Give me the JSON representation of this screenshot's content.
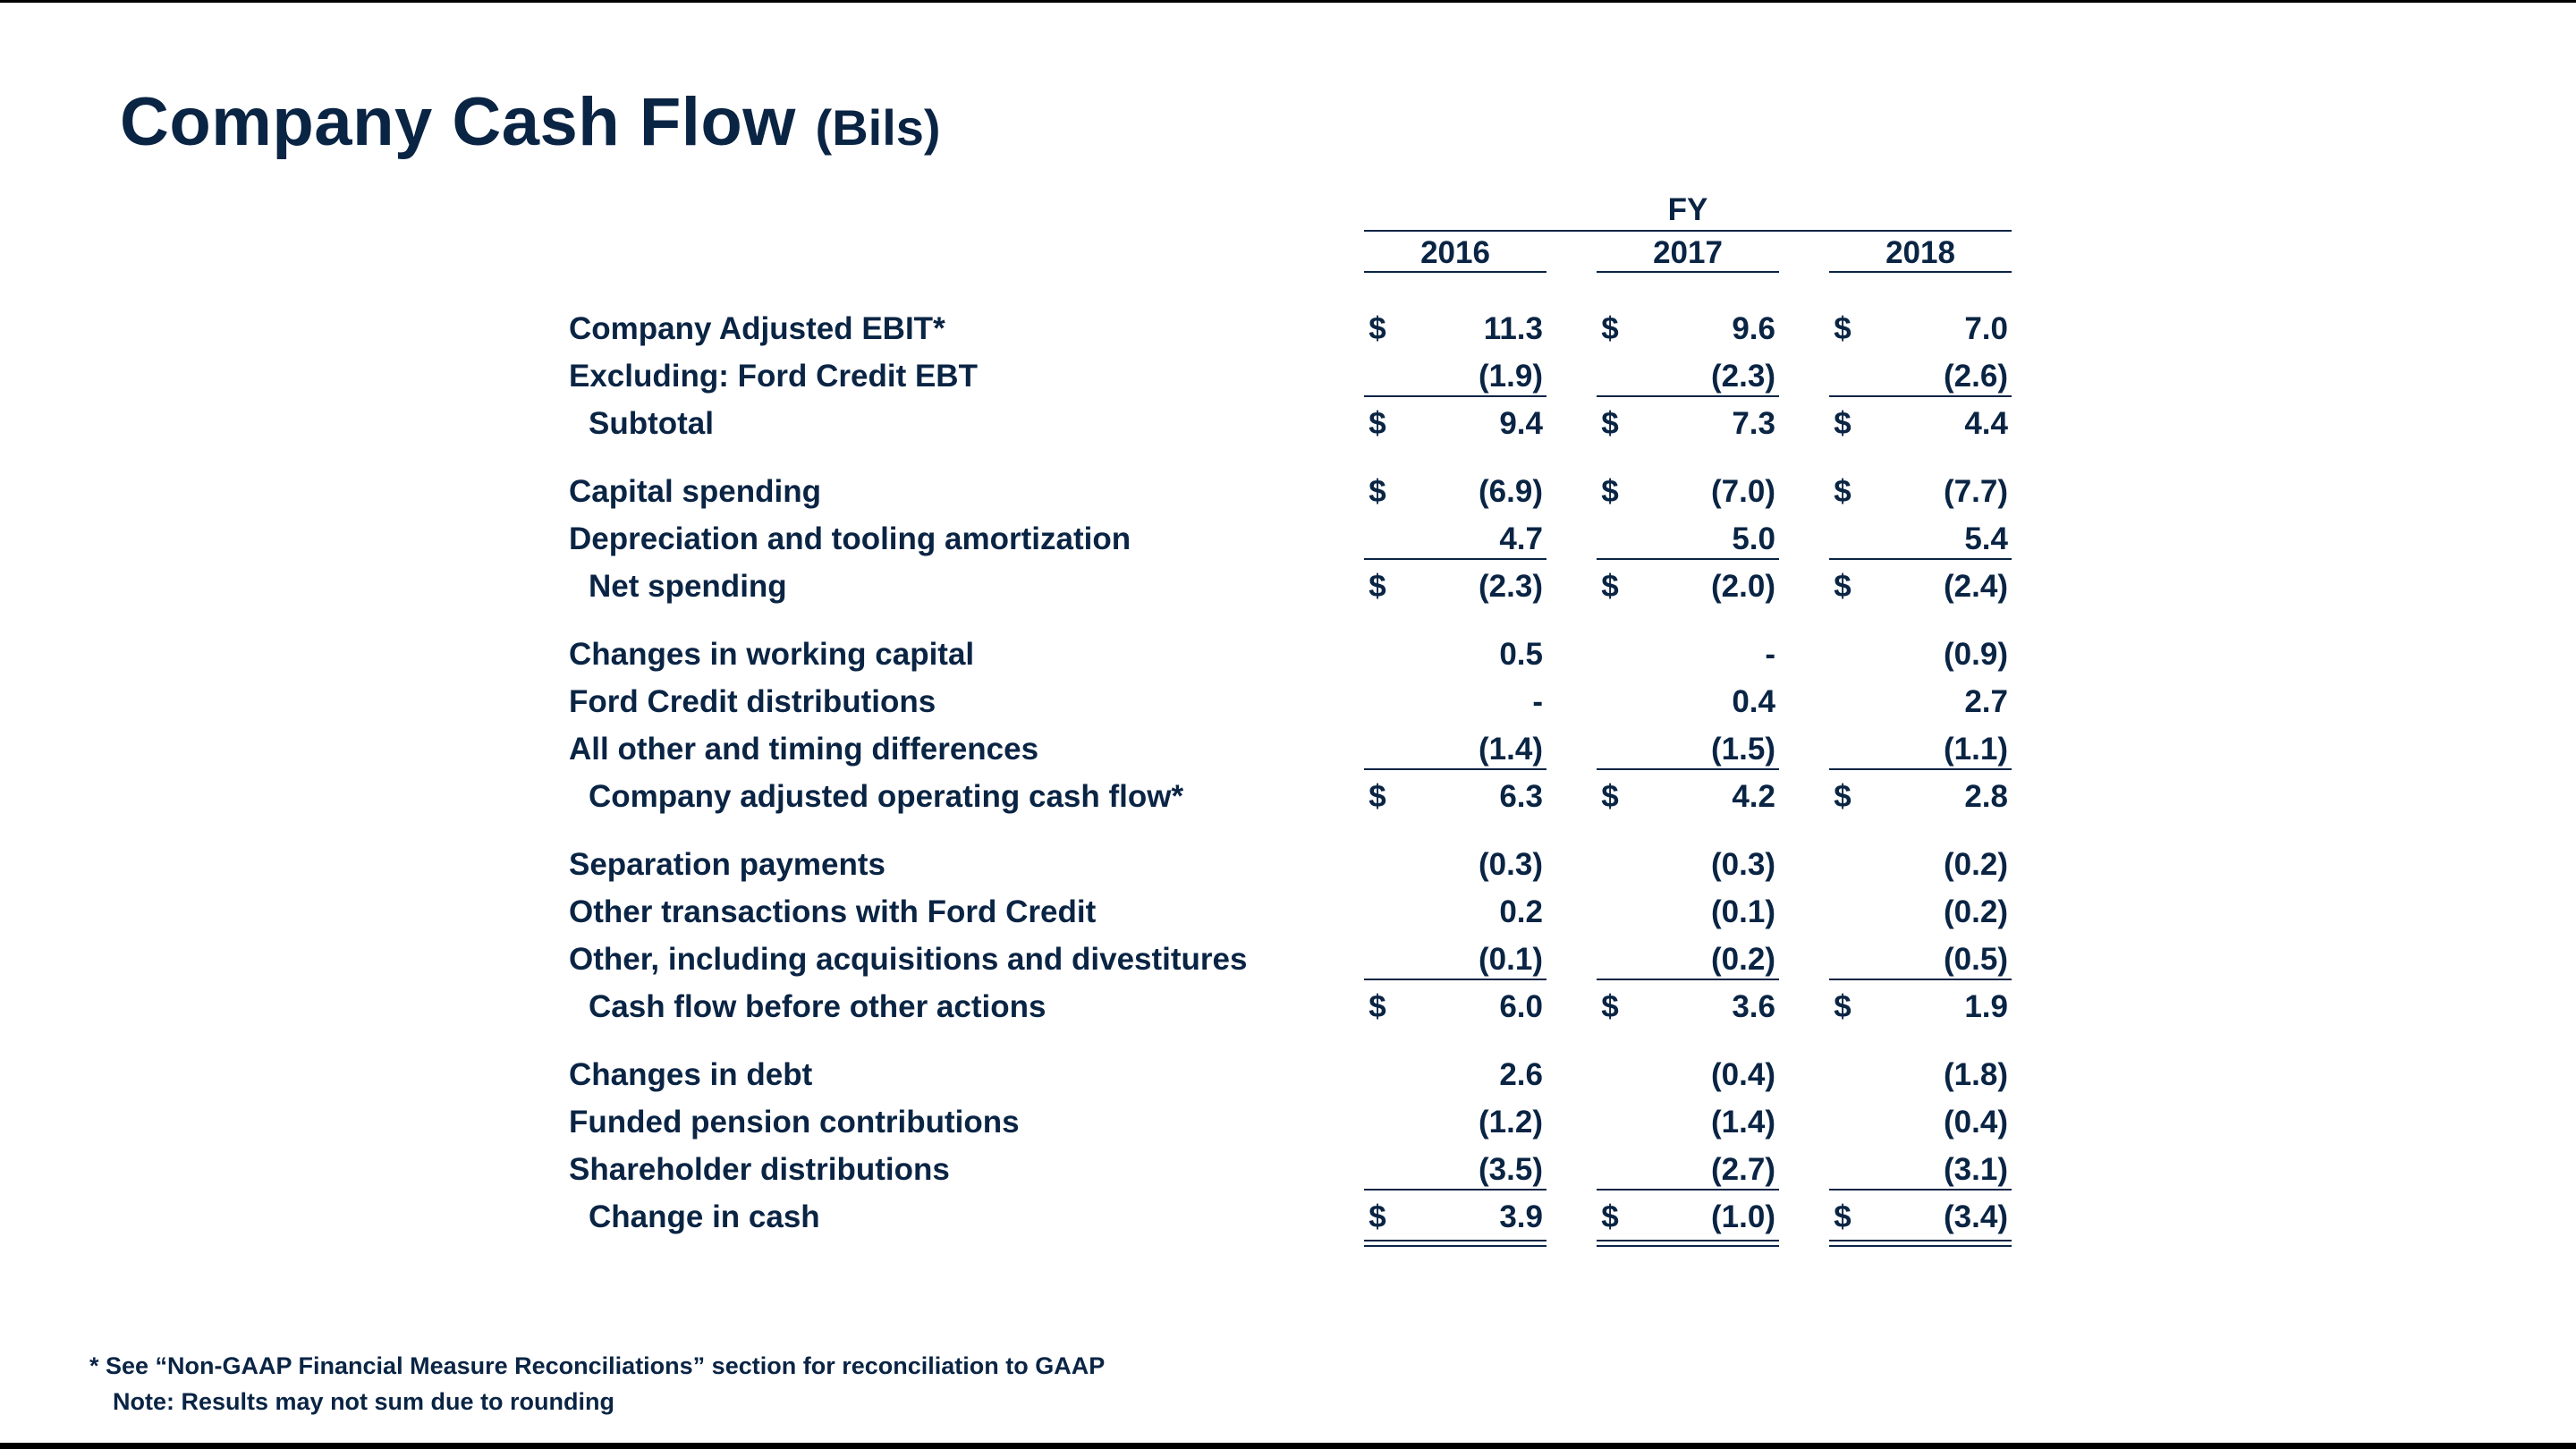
{
  "title": {
    "main": "Company Cash Flow",
    "unit": "(Bils)"
  },
  "table": {
    "period_header": "FY",
    "years": [
      "2016",
      "2017",
      "2018"
    ],
    "rows": [
      {
        "label": "Company Adjusted EBIT*",
        "values": [
          "11.3",
          "9.6",
          "7.0"
        ],
        "dollar": true,
        "indent": false,
        "underline": false,
        "double_underline": false
      },
      {
        "label": "Excluding:  Ford Credit EBT",
        "values": [
          "(1.9)",
          "(2.3)",
          "(2.6)"
        ],
        "dollar": false,
        "indent": false,
        "underline": true,
        "double_underline": false
      },
      {
        "label": "Subtotal",
        "values": [
          "9.4",
          "7.3",
          "4.4"
        ],
        "dollar": true,
        "indent": true,
        "underline": false,
        "double_underline": false
      },
      {
        "label": "Capital spending",
        "values": [
          "(6.9)",
          "(7.0)",
          "(7.7)"
        ],
        "dollar": true,
        "indent": false,
        "underline": false,
        "double_underline": false
      },
      {
        "label": "Depreciation and tooling amortization",
        "values": [
          "4.7",
          "5.0",
          "5.4"
        ],
        "dollar": false,
        "indent": false,
        "underline": true,
        "double_underline": false
      },
      {
        "label": "Net spending",
        "values": [
          "(2.3)",
          "(2.0)",
          "(2.4)"
        ],
        "dollar": true,
        "indent": true,
        "underline": false,
        "double_underline": false
      },
      {
        "label": "Changes in working capital",
        "values": [
          "0.5",
          "-",
          "(0.9)"
        ],
        "dollar": false,
        "indent": false,
        "underline": false,
        "double_underline": false
      },
      {
        "label": "Ford Credit distributions",
        "values": [
          "-",
          "0.4",
          "2.7"
        ],
        "dollar": false,
        "indent": false,
        "underline": false,
        "double_underline": false
      },
      {
        "label": "All other and timing differences",
        "values": [
          "(1.4)",
          "(1.5)",
          "(1.1)"
        ],
        "dollar": false,
        "indent": false,
        "underline": true,
        "double_underline": false
      },
      {
        "label": "Company adjusted operating cash flow*",
        "values": [
          "6.3",
          "4.2",
          "2.8"
        ],
        "dollar": true,
        "indent": true,
        "underline": false,
        "double_underline": false
      },
      {
        "label": "Separation payments",
        "values": [
          "(0.3)",
          "(0.3)",
          "(0.2)"
        ],
        "dollar": false,
        "indent": false,
        "underline": false,
        "double_underline": false
      },
      {
        "label": "Other transactions with Ford Credit",
        "values": [
          "0.2",
          "(0.1)",
          "(0.2)"
        ],
        "dollar": false,
        "indent": false,
        "underline": false,
        "double_underline": false
      },
      {
        "label": "Other, including acquisitions and divestitures",
        "values": [
          "(0.1)",
          "(0.2)",
          "(0.5)"
        ],
        "dollar": false,
        "indent": false,
        "underline": true,
        "double_underline": false
      },
      {
        "label": "Cash flow before other actions",
        "values": [
          "6.0",
          "3.6",
          "1.9"
        ],
        "dollar": true,
        "indent": true,
        "underline": false,
        "double_underline": false
      },
      {
        "label": "Changes in debt",
        "values": [
          "2.6",
          "(0.4)",
          "(1.8)"
        ],
        "dollar": false,
        "indent": false,
        "underline": false,
        "double_underline": false
      },
      {
        "label": "Funded pension contributions",
        "values": [
          "(1.2)",
          "(1.4)",
          "(0.4)"
        ],
        "dollar": false,
        "indent": false,
        "underline": false,
        "double_underline": false
      },
      {
        "label": "Shareholder distributions",
        "values": [
          "(3.5)",
          "(2.7)",
          "(3.1)"
        ],
        "dollar": false,
        "indent": false,
        "underline": true,
        "double_underline": false
      },
      {
        "label": "Change in cash",
        "values": [
          "3.9",
          "(1.0)",
          "(3.4)"
        ],
        "dollar": true,
        "indent": true,
        "underline": false,
        "double_underline": true
      }
    ],
    "currency_symbol": "$"
  },
  "footnotes": {
    "line1": "* See “Non-GAAP Financial Measure Reconciliations” section for reconciliation to GAAP",
    "line2": "Note: Results may not sum due to rounding"
  },
  "colors": {
    "text": "#0a2444",
    "background": "#ffffff",
    "border": "#000000"
  }
}
